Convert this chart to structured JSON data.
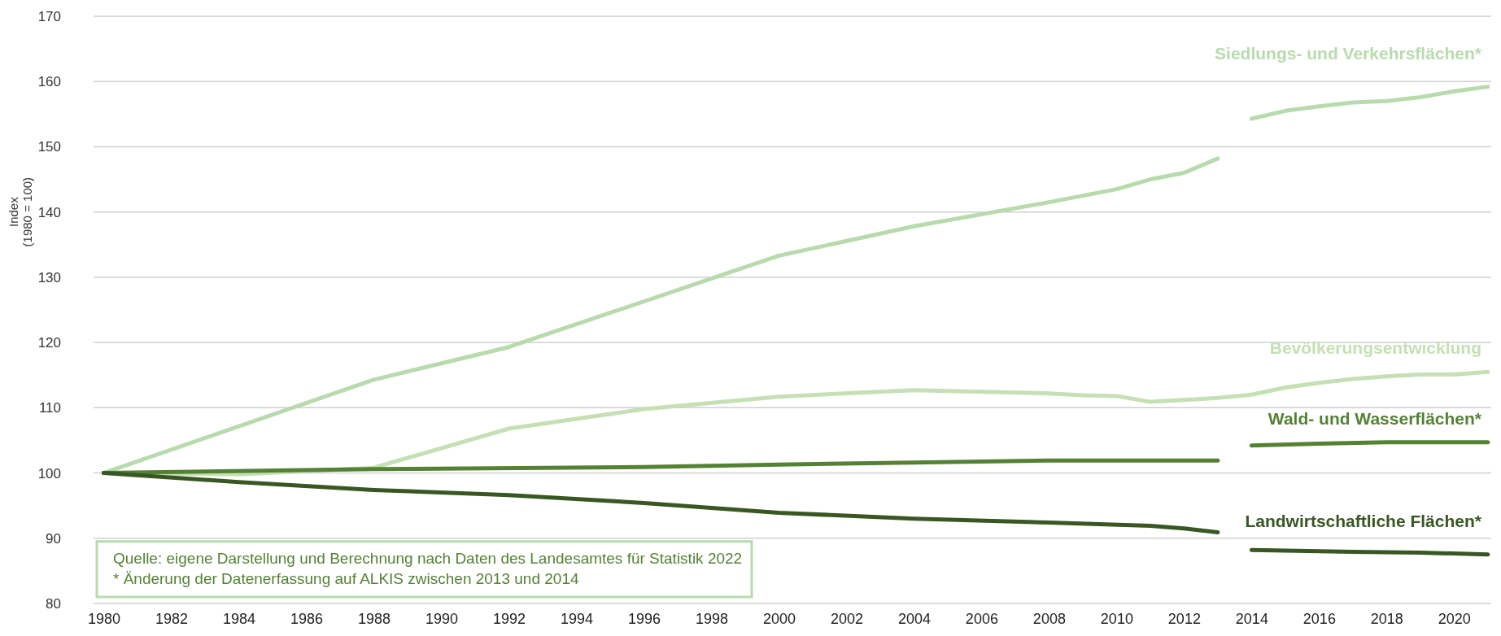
{
  "chart_data": {
    "type": "line",
    "ylabel": "Index\n(1980 = 100)",
    "xlim": [
      1979.7,
      2021.1
    ],
    "ylim": [
      80,
      170
    ],
    "xticks": [
      1980,
      1982,
      1984,
      1986,
      1988,
      1990,
      1992,
      1994,
      1996,
      1998,
      2000,
      2002,
      2004,
      2006,
      2008,
      2010,
      2012,
      2014,
      2016,
      2018,
      2020
    ],
    "yticks": [
      80,
      90,
      100,
      110,
      120,
      130,
      140,
      150,
      160,
      170
    ],
    "grid": "y",
    "legend": false,
    "marker": "none",
    "line_style": "solid",
    "series": [
      {
        "name": "Siedlungs- und Verkehrsflächen*",
        "color": "#b8dbad",
        "x": [
          1980,
          1988,
          1992,
          2000,
          2004,
          2008,
          2010,
          2011,
          2012,
          2013,
          2013.5,
          2014,
          2015,
          2016,
          2017,
          2018,
          2019,
          2020,
          2021
        ],
        "values": [
          100,
          114.3,
          119.3,
          133.3,
          137.8,
          141.5,
          143.5,
          145,
          146,
          148.2,
          null,
          154.3,
          155.5,
          156.2,
          156.8,
          157,
          157.6,
          158.5,
          159.2
        ]
      },
      {
        "name": "Bevölkerungsentwicklung",
        "color": "#c5e0b4",
        "x": [
          1980,
          1984,
          1988,
          1992,
          1996,
          2000,
          2004,
          2008,
          2009,
          2010,
          2011,
          2012,
          2013,
          2014,
          2015,
          2016,
          2017,
          2018,
          2019,
          2020,
          2021
        ],
        "values": [
          100,
          99.8,
          100.8,
          106.8,
          109.8,
          111.7,
          112.7,
          112.2,
          111.9,
          111.8,
          110.9,
          111.2,
          111.5,
          112,
          113.1,
          113.8,
          114.4,
          114.8,
          115.1,
          115.1,
          115.5
        ]
      },
      {
        "name": "Wald- und Wasserflächen*",
        "color": "#548235",
        "x": [
          1980,
          1988,
          1996,
          2000,
          2004,
          2008,
          2013,
          2013.5,
          2014,
          2016,
          2018,
          2021
        ],
        "values": [
          100,
          100.6,
          100.9,
          101.3,
          101.6,
          101.9,
          101.9,
          null,
          104.2,
          104.5,
          104.7,
          104.7
        ]
      },
      {
        "name": "Landwirtschaftliche Flächen*",
        "color": "#385723",
        "x": [
          1980,
          1984,
          1988,
          1992,
          1996,
          2000,
          2004,
          2008,
          2011,
          2012,
          2013,
          2013.5,
          2014,
          2017,
          2019,
          2021
        ],
        "values": [
          100,
          98.6,
          97.4,
          96.6,
          95.4,
          93.9,
          93.0,
          92.4,
          91.9,
          91.5,
          90.9,
          null,
          88.2,
          87.9,
          87.8,
          87.5
        ]
      }
    ],
    "annotations": [
      "Quelle: eigene Darstellung und Berechnung nach Daten des Landesamtes für Statistik 2022",
      "* Änderung der Datenerfassung auf ALKIS zwischen 2013 und 2014"
    ]
  }
}
